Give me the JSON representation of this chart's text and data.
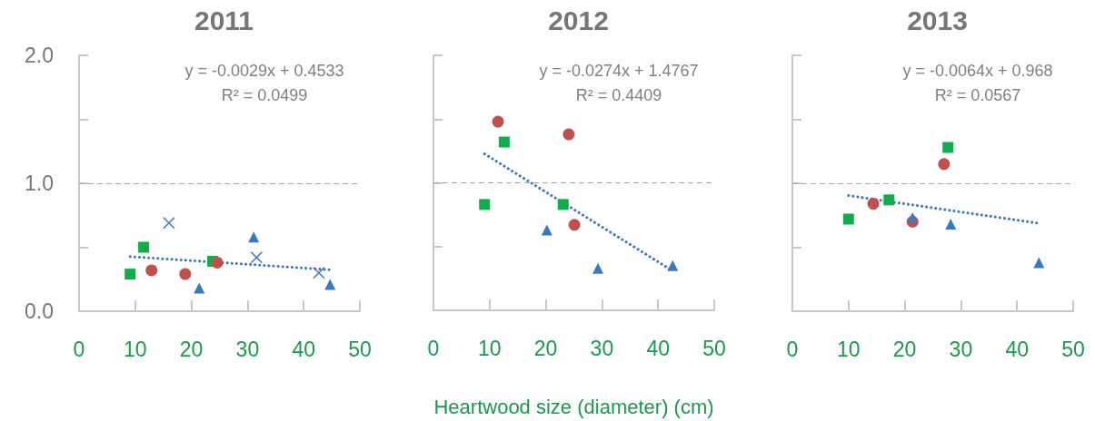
{
  "chart_data": [
    {
      "type": "scatter",
      "title": "2011",
      "xlim": [
        0,
        50
      ],
      "xticks": [
        0,
        10,
        20,
        30,
        40,
        50
      ],
      "ylim": [
        0,
        2
      ],
      "yticks": [
        {
          "value": 0,
          "label": "0.0"
        },
        {
          "value": 0.5,
          "label": null
        },
        {
          "value": 1,
          "label": "1.0"
        },
        {
          "value": 1.5,
          "label": null
        },
        {
          "value": 2,
          "label": "2.0"
        }
      ],
      "annotations": [
        "y = -0.0029x + 0.4533",
        "R² = 0.0499"
      ],
      "ref_lines": [
        {
          "axis": "y",
          "value": 1,
          "color": "#a6a6a6",
          "line_style": "dashed"
        }
      ],
      "series": [
        {
          "color": "#12ad4b",
          "marker": "square",
          "x": [
            9.1,
            11.5,
            23.8
          ],
          "values": [
            0.29,
            0.5,
            0.39
          ]
        },
        {
          "color": "#c0504d",
          "marker": "circle",
          "x": [
            12.9,
            18.9,
            24.6
          ],
          "values": [
            0.32,
            0.29,
            0.38
          ]
        },
        {
          "color": "#3b78c0",
          "marker": "triangle",
          "x": [
            21.4,
            31.1,
            44.7
          ],
          "values": [
            0.18,
            0.58,
            0.21
          ]
        },
        {
          "color": "#3b78c0",
          "marker": "cross",
          "x": [
            16.0,
            31.6,
            42.7
          ],
          "values": [
            0.69,
            0.42,
            0.3
          ]
        },
        {
          "type": "line",
          "color": "#3b78c0",
          "marker": "none",
          "line_style": "dotted",
          "x": [
            9.1,
            44.7
          ],
          "values": [
            0.427,
            0.324
          ]
        }
      ]
    },
    {
      "type": "scatter",
      "title": "2012",
      "xlabel": "Heartwood size (diameter) (cm)",
      "xlim": [
        0,
        50
      ],
      "xticks": [
        0,
        10,
        20,
        30,
        40,
        50
      ],
      "ylim": [
        0,
        2
      ],
      "yticks": [
        {
          "value": 0,
          "label": null
        },
        {
          "value": 0.5,
          "label": null
        },
        {
          "value": 1,
          "label": null
        },
        {
          "value": 1.5,
          "label": null
        },
        {
          "value": 2,
          "label": null
        }
      ],
      "tick_labels": "x",
      "annotations": [
        "y = -0.0274x + 1.4767",
        "R² = 0.4409"
      ],
      "ref_lines": [
        {
          "axis": "y",
          "value": 1,
          "color": "#a6a6a6",
          "line_style": "dashed"
        }
      ],
      "series": [
        {
          "color": "#12ad4b",
          "marker": "square",
          "x": [
            9.1,
            12.6,
            23.1
          ],
          "values": [
            0.83,
            1.32,
            0.83
          ]
        },
        {
          "color": "#c0504d",
          "marker": "circle",
          "x": [
            11.5,
            24.1,
            25.1
          ],
          "values": [
            1.48,
            1.38,
            0.67
          ]
        },
        {
          "color": "#3b78c0",
          "marker": "triangle",
          "x": [
            20.2,
            29.3,
            42.6
          ],
          "values": [
            0.63,
            0.33,
            0.35
          ]
        },
        {
          "type": "line",
          "color": "#3b78c0",
          "marker": "none",
          "line_style": "dotted",
          "x": [
            9.1,
            42.6
          ],
          "values": [
            1.227,
            0.309
          ]
        }
      ]
    },
    {
      "type": "scatter",
      "title": "2013",
      "xlim": [
        0,
        50
      ],
      "xticks": [
        0,
        10,
        20,
        30,
        40,
        50
      ],
      "ylim": [
        0,
        2
      ],
      "yticks": [
        {
          "value": 0,
          "label": null
        },
        {
          "value": 0.5,
          "label": null
        },
        {
          "value": 1,
          "label": null
        },
        {
          "value": 1.5,
          "label": null
        },
        {
          "value": 2,
          "label": null
        }
      ],
      "tick_labels": "x",
      "annotations": [
        "y = -0.0064x + 0.968",
        "R² = 0.0567"
      ],
      "ref_lines": [
        {
          "axis": "y",
          "value": 1,
          "color": "#a6a6a6",
          "line_style": "dashed"
        }
      ],
      "series": [
        {
          "color": "#12ad4b",
          "marker": "square",
          "x": [
            10.0,
            17.2,
            27.7
          ],
          "values": [
            0.72,
            0.87,
            1.28
          ]
        },
        {
          "color": "#c0504d",
          "marker": "circle",
          "x": [
            14.4,
            21.4,
            27.0
          ],
          "values": [
            0.84,
            0.7,
            1.15
          ]
        },
        {
          "color": "#3b78c0",
          "marker": "triangle",
          "x": [
            21.4,
            28.2,
            43.9
          ],
          "values": [
            0.73,
            0.68,
            0.38
          ]
        },
        {
          "type": "line",
          "color": "#3b78c0",
          "marker": "none",
          "line_style": "dotted",
          "x": [
            10.0,
            43.9
          ],
          "values": [
            0.904,
            0.687
          ]
        }
      ]
    }
  ]
}
